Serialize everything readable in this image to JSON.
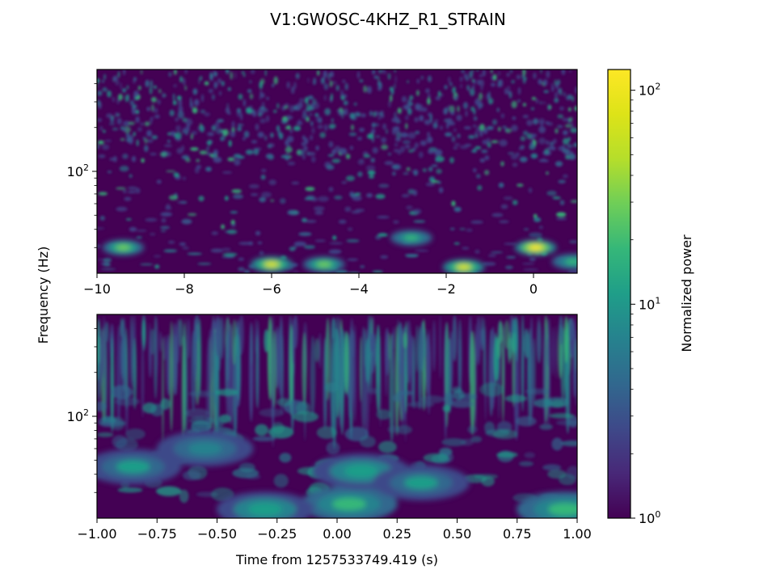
{
  "chart_data": {
    "type": "heatmap",
    "title": "V1:GWOSC-4KHZ_R1_STRAIN",
    "ylabel": "Frequency (Hz)",
    "colormap": "viridis",
    "colorbar": {
      "label": "Normalized power",
      "scale": "log",
      "range": [
        1,
        125
      ],
      "tick_labels": [
        "10^0",
        "10^1",
        "10^2"
      ],
      "tick_values": [
        1,
        10,
        100
      ]
    },
    "panels": [
      {
        "name": "top",
        "xlim": [
          -10,
          1
        ],
        "x_ticks": [
          -10,
          -8,
          -6,
          -4,
          -2,
          0
        ],
        "x_tick_labels": [
          "−10",
          "−8",
          "−6",
          "−4",
          "−2",
          "0"
        ],
        "yscale": "log",
        "ylim": [
          20,
          500
        ],
        "y_tick_labels": [
          "10^2"
        ],
        "y_tick_values": [
          100
        ],
        "hotspots": [
          {
            "t": 0.05,
            "f": 30,
            "power": 120
          },
          {
            "t": -1.6,
            "f": 22,
            "power": 75
          },
          {
            "t": -6.0,
            "f": 23,
            "power": 65
          },
          {
            "t": -4.8,
            "f": 23,
            "power": 30
          },
          {
            "t": -9.4,
            "f": 30,
            "power": 25
          },
          {
            "t": 0.9,
            "f": 24,
            "power": 20
          },
          {
            "t": -2.8,
            "f": 35,
            "power": 18
          }
        ]
      },
      {
        "name": "bottom",
        "xlim": [
          -1,
          1
        ],
        "x_ticks": [
          -1,
          -0.75,
          -0.5,
          -0.25,
          0,
          0.25,
          0.5,
          0.75,
          1
        ],
        "x_tick_labels": [
          "−1.00",
          "−0.75",
          "−0.50",
          "−0.25",
          "0.00",
          "0.25",
          "0.50",
          "0.75",
          "1.00"
        ],
        "xlabel": "Time from 1257533749.419 (s)",
        "yscale": "log",
        "ylim": [
          20,
          500
        ],
        "y_tick_labels": [
          "10^2"
        ],
        "y_tick_values": [
          100
        ],
        "hotspots": [
          {
            "t": 0.05,
            "f": 25,
            "power": 18
          },
          {
            "t": -0.3,
            "f": 23,
            "power": 14
          },
          {
            "t": 0.95,
            "f": 23,
            "power": 16
          },
          {
            "t": 0.1,
            "f": 42,
            "power": 12
          },
          {
            "t": -0.85,
            "f": 45,
            "power": 10
          },
          {
            "t": 0.35,
            "f": 35,
            "power": 9
          },
          {
            "t": -0.55,
            "f": 60,
            "power": 8
          }
        ]
      }
    ]
  }
}
